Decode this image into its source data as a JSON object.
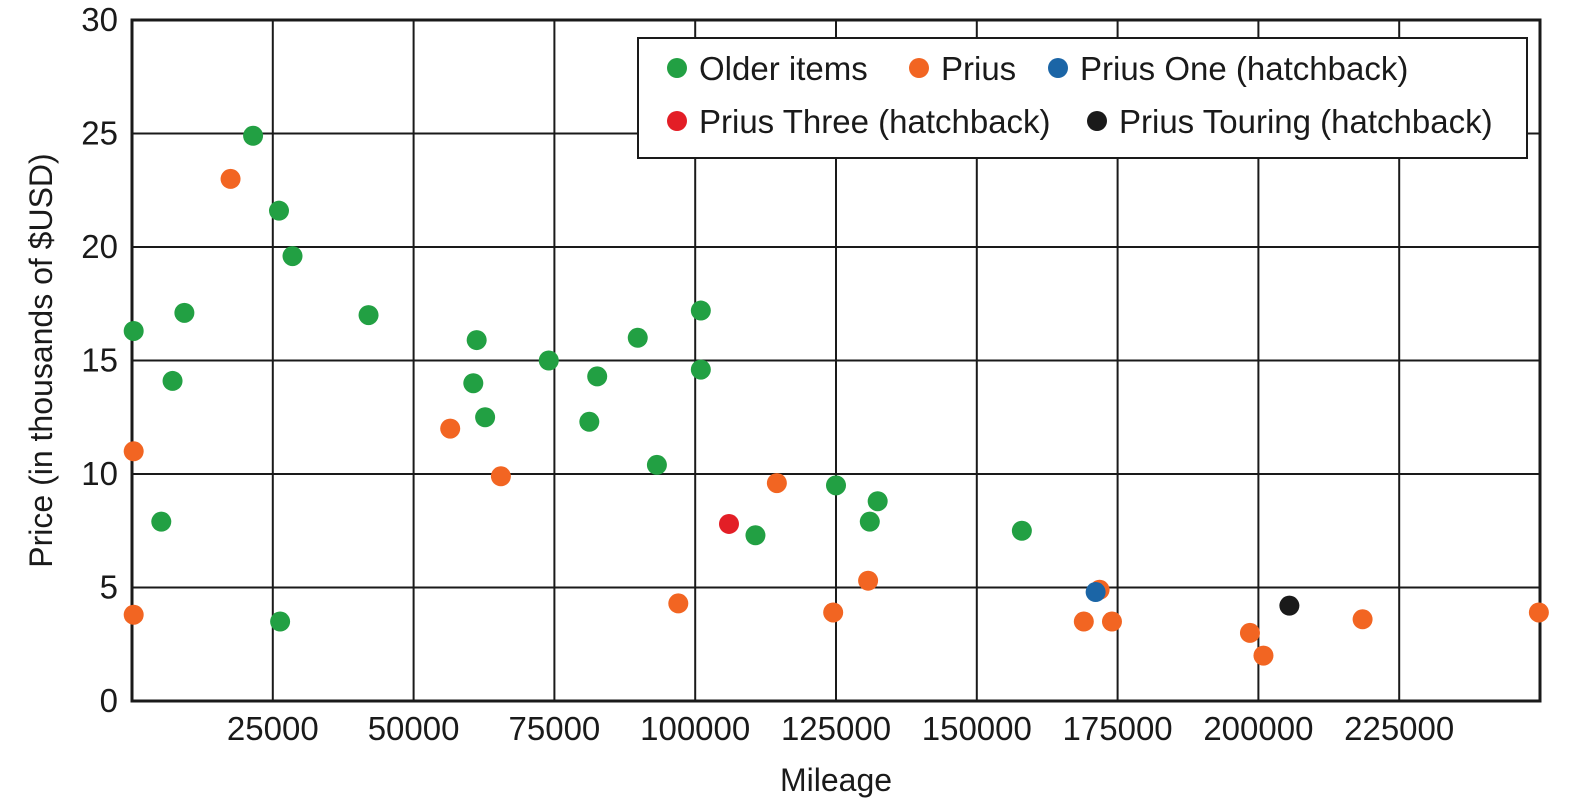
{
  "chart_data": {
    "type": "scatter",
    "title": "",
    "xlabel": "Mileage",
    "ylabel": "Price (in thousands of $USD)",
    "xlim": [
      0,
      250000
    ],
    "ylim": [
      0,
      30
    ],
    "xticks": [
      25000,
      50000,
      75000,
      100000,
      125000,
      150000,
      175000,
      200000,
      225000
    ],
    "yticks": [
      0,
      5,
      10,
      15,
      20,
      25,
      30
    ],
    "grid": true,
    "legend_position": "top-right",
    "series": [
      {
        "name": "Older items",
        "color": "#22a043",
        "points": [
          [
            300,
            16.3
          ],
          [
            5200,
            7.9
          ],
          [
            7200,
            14.1
          ],
          [
            9300,
            17.1
          ],
          [
            21500,
            24.9
          ],
          [
            26100,
            21.6
          ],
          [
            26300,
            3.5
          ],
          [
            28500,
            19.6
          ],
          [
            42000,
            17.0
          ],
          [
            60600,
            14.0
          ],
          [
            61200,
            15.9
          ],
          [
            62700,
            12.5
          ],
          [
            74000,
            15.0
          ],
          [
            81200,
            12.3
          ],
          [
            82600,
            14.3
          ],
          [
            89800,
            16.0
          ],
          [
            93200,
            10.4
          ],
          [
            101000,
            17.2
          ],
          [
            101000,
            14.6
          ],
          [
            110700,
            7.3
          ],
          [
            125000,
            9.5
          ],
          [
            131000,
            7.9
          ],
          [
            132400,
            8.8
          ],
          [
            158000,
            7.5
          ]
        ]
      },
      {
        "name": "Prius",
        "color": "#f26522",
        "points": [
          [
            300,
            11.0
          ],
          [
            300,
            3.8
          ],
          [
            17500,
            23.0
          ],
          [
            56500,
            12.0
          ],
          [
            65500,
            9.9
          ],
          [
            97000,
            4.3
          ],
          [
            114500,
            9.6
          ],
          [
            124500,
            3.9
          ],
          [
            130700,
            5.3
          ],
          [
            169000,
            3.5
          ],
          [
            171800,
            4.9
          ],
          [
            174000,
            3.5
          ],
          [
            198500,
            3.0
          ],
          [
            200900,
            2.0
          ],
          [
            218500,
            3.6
          ],
          [
            249800,
            3.9
          ]
        ]
      },
      {
        "name": "Prius One (hatchback)",
        "color": "#1b65a6",
        "points": [
          [
            171100,
            4.8
          ]
        ]
      },
      {
        "name": "Prius Three (hatchback)",
        "color": "#e31e26",
        "points": [
          [
            106000,
            7.8
          ]
        ]
      },
      {
        "name": "Prius Touring (hatchback)",
        "color": "#1a1a1a",
        "points": [
          [
            205500,
            4.2
          ]
        ]
      }
    ]
  }
}
